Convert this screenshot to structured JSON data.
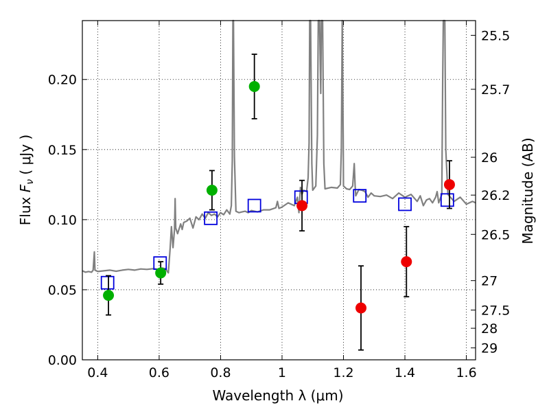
{
  "chart_data": {
    "type": "scatter",
    "xlabel": "Wavelength  λ (μm)",
    "ylabel_left": "Flux  F_ν  ( μJy )",
    "ylabel_right": "Magnitude (AB)",
    "xlim": [
      0.35,
      1.63
    ],
    "ylim": [
      0.0,
      0.242
    ],
    "x_ticks": [
      {
        "value": 0.4,
        "label": "0.4"
      },
      {
        "value": 0.6,
        "label": "0.6"
      },
      {
        "value": 0.8,
        "label": "0.8"
      },
      {
        "value": 1.0,
        "label": "1"
      },
      {
        "value": 1.2,
        "label": "1.2"
      },
      {
        "value": 1.4,
        "label": "1.4"
      },
      {
        "value": 1.6,
        "label": "1.6"
      }
    ],
    "y_ticks": [
      {
        "value": 0.0,
        "label": "0.00"
      },
      {
        "value": 0.05,
        "label": "0.05"
      },
      {
        "value": 0.1,
        "label": "0.10"
      },
      {
        "value": 0.15,
        "label": "0.15"
      },
      {
        "value": 0.2,
        "label": "0.20"
      }
    ],
    "right_ticks": [
      {
        "flux": 0.2315,
        "label": "25.5"
      },
      {
        "flux": 0.193,
        "label": "25.7"
      },
      {
        "flux": 0.1445,
        "label": "26"
      },
      {
        "flux": 0.1175,
        "label": "26.2"
      },
      {
        "flux": 0.0895,
        "label": "26.5"
      },
      {
        "flux": 0.0565,
        "label": "27"
      },
      {
        "flux": 0.0355,
        "label": "27.5"
      },
      {
        "flux": 0.0225,
        "label": "28"
      },
      {
        "flux": 0.0085,
        "label": "29"
      }
    ],
    "grid": true,
    "colors": {
      "spectrum": "#808080",
      "green_points": "#00b000",
      "red_points": "#ee0000",
      "model_squares": "#0000dd",
      "error_bars": "#000000"
    },
    "series": [
      {
        "kind": "spectrum-line",
        "points": [
          [
            0.35,
            0.0635
          ],
          [
            0.36,
            0.0625
          ],
          [
            0.37,
            0.063
          ],
          [
            0.38,
            0.0625
          ],
          [
            0.385,
            0.064
          ],
          [
            0.389,
            0.077
          ],
          [
            0.391,
            0.064
          ],
          [
            0.4,
            0.063
          ],
          [
            0.42,
            0.0635
          ],
          [
            0.44,
            0.064
          ],
          [
            0.46,
            0.0632
          ],
          [
            0.48,
            0.064
          ],
          [
            0.5,
            0.0645
          ],
          [
            0.52,
            0.064
          ],
          [
            0.54,
            0.0648
          ],
          [
            0.56,
            0.0645
          ],
          [
            0.58,
            0.065
          ],
          [
            0.6,
            0.0645
          ],
          [
            0.61,
            0.0655
          ],
          [
            0.62,
            0.065
          ],
          [
            0.63,
            0.062
          ],
          [
            0.636,
            0.08
          ],
          [
            0.64,
            0.095
          ],
          [
            0.645,
            0.08
          ],
          [
            0.65,
            0.093
          ],
          [
            0.652,
            0.115
          ],
          [
            0.654,
            0.094
          ],
          [
            0.66,
            0.09
          ],
          [
            0.67,
            0.097
          ],
          [
            0.675,
            0.093
          ],
          [
            0.68,
            0.098
          ],
          [
            0.69,
            0.099
          ],
          [
            0.7,
            0.101
          ],
          [
            0.71,
            0.094
          ],
          [
            0.72,
            0.102
          ],
          [
            0.73,
            0.1
          ],
          [
            0.74,
            0.104
          ],
          [
            0.75,
            0.101
          ],
          [
            0.76,
            0.105
          ],
          [
            0.77,
            0.103
          ],
          [
            0.78,
            0.104
          ],
          [
            0.79,
            0.102
          ],
          [
            0.8,
            0.105
          ],
          [
            0.81,
            0.1035
          ],
          [
            0.82,
            0.107
          ],
          [
            0.83,
            0.104
          ],
          [
            0.835,
            0.11
          ],
          [
            0.838,
            0.142
          ],
          [
            0.84,
            0.242
          ],
          [
            0.842,
            0.242
          ],
          [
            0.845,
            0.145
          ],
          [
            0.85,
            0.106
          ],
          [
            0.86,
            0.105
          ],
          [
            0.87,
            0.1055
          ],
          [
            0.88,
            0.106
          ],
          [
            0.89,
            0.105
          ],
          [
            0.9,
            0.1065
          ],
          [
            0.92,
            0.1055
          ],
          [
            0.94,
            0.107
          ],
          [
            0.96,
            0.107
          ],
          [
            0.98,
            0.1085
          ],
          [
            0.985,
            0.113
          ],
          [
            0.99,
            0.108
          ],
          [
            1.0,
            0.109
          ],
          [
            1.02,
            0.112
          ],
          [
            1.04,
            0.11
          ],
          [
            1.05,
            0.116
          ],
          [
            1.055,
            0.105
          ],
          [
            1.06,
            0.123
          ],
          [
            1.065,
            0.118
          ],
          [
            1.07,
            0.121
          ],
          [
            1.08,
            0.12
          ],
          [
            1.085,
            0.13
          ],
          [
            1.088,
            0.155
          ],
          [
            1.09,
            0.242
          ],
          [
            1.093,
            0.242
          ],
          [
            1.097,
            0.14
          ],
          [
            1.1,
            0.121
          ],
          [
            1.11,
            0.124
          ],
          [
            1.115,
            0.16
          ],
          [
            1.118,
            0.242
          ],
          [
            1.122,
            0.242
          ],
          [
            1.126,
            0.19
          ],
          [
            1.128,
            0.242
          ],
          [
            1.132,
            0.242
          ],
          [
            1.136,
            0.14
          ],
          [
            1.14,
            0.122
          ],
          [
            1.16,
            0.123
          ],
          [
            1.18,
            0.1225
          ],
          [
            1.19,
            0.125
          ],
          [
            1.193,
            0.15
          ],
          [
            1.196,
            0.242
          ],
          [
            1.199,
            0.16
          ],
          [
            1.2,
            0.124
          ],
          [
            1.21,
            0.122
          ],
          [
            1.22,
            0.1215
          ],
          [
            1.23,
            0.124
          ],
          [
            1.235,
            0.14
          ],
          [
            1.238,
            0.124
          ],
          [
            1.24,
            0.117
          ],
          [
            1.25,
            0.1215
          ],
          [
            1.26,
            0.121
          ],
          [
            1.27,
            0.12
          ],
          [
            1.28,
            0.116
          ],
          [
            1.29,
            0.119
          ],
          [
            1.3,
            0.117
          ],
          [
            1.32,
            0.1165
          ],
          [
            1.34,
            0.1175
          ],
          [
            1.36,
            0.115
          ],
          [
            1.38,
            0.119
          ],
          [
            1.4,
            0.116
          ],
          [
            1.42,
            0.118
          ],
          [
            1.44,
            0.113
          ],
          [
            1.45,
            0.117
          ],
          [
            1.46,
            0.11
          ],
          [
            1.47,
            0.114
          ],
          [
            1.48,
            0.115
          ],
          [
            1.49,
            0.112
          ],
          [
            1.5,
            0.116
          ],
          [
            1.505,
            0.12
          ],
          [
            1.51,
            0.112
          ],
          [
            1.52,
            0.118
          ],
          [
            1.523,
            0.2
          ],
          [
            1.525,
            0.242
          ],
          [
            1.53,
            0.242
          ],
          [
            1.533,
            0.15
          ],
          [
            1.54,
            0.118
          ],
          [
            1.56,
            0.113
          ],
          [
            1.58,
            0.116
          ],
          [
            1.6,
            0.111
          ],
          [
            1.62,
            0.113
          ],
          [
            1.63,
            0.112
          ]
        ]
      },
      {
        "kind": "green-points",
        "points": [
          {
            "x": 0.435,
            "y": 0.046,
            "err": 0.014
          },
          {
            "x": 0.605,
            "y": 0.062,
            "err": 0.008
          },
          {
            "x": 0.772,
            "y": 0.121,
            "err": 0.014
          },
          {
            "x": 0.91,
            "y": 0.195,
            "err": 0.023
          }
        ]
      },
      {
        "kind": "red-points",
        "points": [
          {
            "x": 1.065,
            "y": 0.11,
            "err": 0.018
          },
          {
            "x": 1.257,
            "y": 0.037,
            "err": 0.03
          },
          {
            "x": 1.405,
            "y": 0.07,
            "err": 0.025
          },
          {
            "x": 1.545,
            "y": 0.125,
            "err": 0.017
          }
        ]
      },
      {
        "kind": "model-squares",
        "points": [
          {
            "x": 0.432,
            "y": 0.055
          },
          {
            "x": 0.603,
            "y": 0.069
          },
          {
            "x": 0.768,
            "y": 0.101
          },
          {
            "x": 0.91,
            "y": 0.11
          },
          {
            "x": 1.062,
            "y": 0.116
          },
          {
            "x": 1.253,
            "y": 0.117
          },
          {
            "x": 1.4,
            "y": 0.111
          },
          {
            "x": 1.538,
            "y": 0.114
          }
        ]
      }
    ]
  }
}
